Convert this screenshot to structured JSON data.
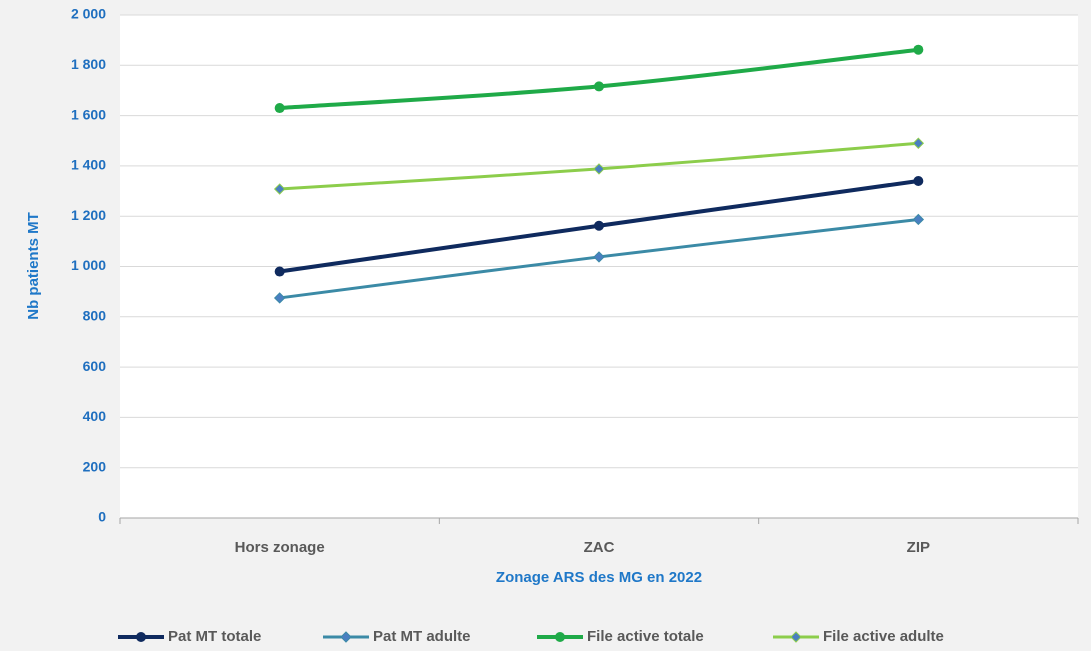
{
  "chart_data": {
    "type": "line",
    "x_label": "Zonage ARS des MG en 2022",
    "y_label": "Nb patients MT",
    "categories": [
      "Hors zonage",
      "ZAC",
      "ZIP"
    ],
    "series": [
      {
        "name": "Pat MT totale",
        "color": "#0f2a5e",
        "marker": "circle",
        "values": [
          980,
          1162,
          1340
        ]
      },
      {
        "name": "Pat MT adulte",
        "color": "#3b8aa6",
        "marker": "diamond",
        "values": [
          875,
          1038,
          1187
        ]
      },
      {
        "name": "File active totale",
        "color": "#1faa48",
        "marker": "circle",
        "values": [
          1630,
          1716,
          1862
        ]
      },
      {
        "name": "File active adulte",
        "color": "#8ccd4b",
        "marker": "diamond",
        "values": [
          1308,
          1388,
          1490
        ]
      }
    ],
    "ylim": [
      0,
      2000
    ],
    "yticks": [
      0,
      200,
      400,
      600,
      800,
      {
        "value": 1000,
        "label": "1 000"
      },
      {
        "value": 1200,
        "label": "1 200"
      },
      {
        "value": 1400,
        "label": "1 400"
      },
      {
        "value": 1600,
        "label": "1 600"
      },
      {
        "value": 1800,
        "label": "1 800"
      },
      {
        "value": 2000,
        "label": "2 000"
      }
    ],
    "grid": true,
    "legend": "bottom"
  }
}
